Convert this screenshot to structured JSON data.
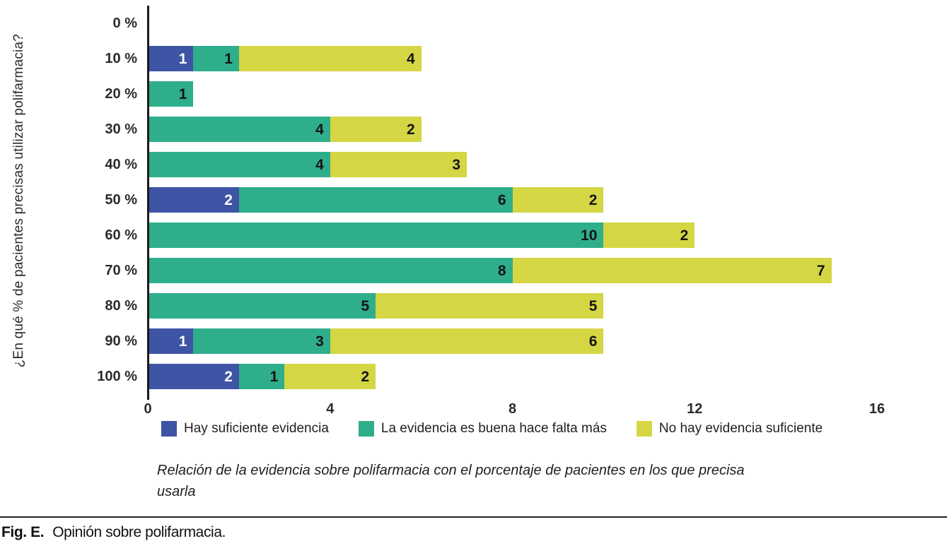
{
  "figure": {
    "caption": [
      "Relación de la evidencia sobre polifarmacia con el porcentaje de pacientes en los que precisa",
      "usarla"
    ],
    "fig_label": "Fig. E.",
    "fig_text": "Opinión sobre polifarmacia."
  },
  "chart_data": {
    "type": "bar",
    "orientation": "horizontal",
    "stacked": true,
    "title": "",
    "xlabel": "",
    "ylabel": "¿En qué % de pacientes precisas utilizar polifarmacia?",
    "categories": [
      "0 %",
      "10 %",
      "20 %",
      "30 %",
      "40 %",
      "50 %",
      "60 %",
      "70 %",
      "80 %",
      "90 %",
      "100 %"
    ],
    "series": [
      {
        "name": "Hay suficiente evidencia",
        "color": "#3E54A4",
        "label_color": "#ffffff",
        "values": [
          0,
          1,
          0,
          0,
          0,
          2,
          0,
          0,
          0,
          1,
          2
        ]
      },
      {
        "name": "La evidencia es buena hace falta más",
        "color": "#2FAE8C",
        "label_color": "#141414",
        "values": [
          0,
          1,
          1,
          4,
          4,
          6,
          10,
          8,
          5,
          3,
          1
        ]
      },
      {
        "name": "No hay evidencia suficiente",
        "color": "#D5D644",
        "label_color": "#141414",
        "values": [
          0,
          4,
          0,
          2,
          3,
          2,
          2,
          7,
          5,
          6,
          2
        ]
      }
    ],
    "xlim": [
      0,
      16
    ],
    "xticks": [
      0,
      4,
      8,
      12,
      16
    ],
    "grid": false,
    "value_labels": true,
    "legend_position": "bottom"
  }
}
